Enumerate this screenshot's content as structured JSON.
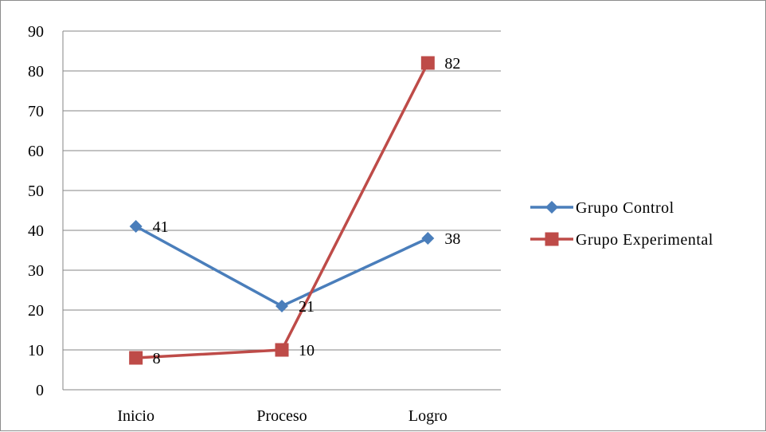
{
  "chart_data": {
    "type": "line",
    "title": "",
    "xlabel": "",
    "ylabel": "",
    "categories": [
      "Inicio",
      "Proceso",
      "Logro"
    ],
    "ylim": [
      0,
      90
    ],
    "ytick_step": 10,
    "yticks": [
      "0",
      "10",
      "20",
      "30",
      "40",
      "50",
      "60",
      "70",
      "80",
      "90"
    ],
    "grid": true,
    "legend_position": "right",
    "series": [
      {
        "name": "Grupo Control",
        "values": [
          41,
          21,
          38
        ],
        "color": "#4a7ebb",
        "marker": "diamond"
      },
      {
        "name": "Grupo Experimental",
        "values": [
          8,
          10,
          82
        ],
        "color": "#be4b48",
        "marker": "square"
      }
    ]
  }
}
